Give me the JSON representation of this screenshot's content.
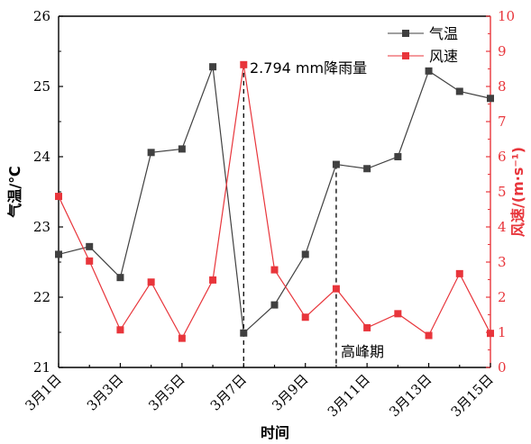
{
  "chart_data": {
    "type": "line",
    "xlabel": "时间",
    "categories": [
      "3月1日",
      "3月2日",
      "3月3日",
      "3月4日",
      "3月5日",
      "3月6日",
      "3月7日",
      "3月8日",
      "3月9日",
      "3月10日",
      "3月11日",
      "3月12日",
      "3月13日",
      "3月14日",
      "3月15日"
    ],
    "x_tick_labels": [
      "3月1日",
      "3月3日",
      "3月5日",
      "3月7日",
      "3月9日",
      "3月11日",
      "3月13日",
      "3月15日"
    ],
    "y_left": {
      "label": "气温/℃",
      "lim": [
        21,
        26
      ],
      "ticks": [
        "21",
        "22",
        "23",
        "24",
        "25",
        "26"
      ]
    },
    "y_right": {
      "label": "风速/(m·s⁻¹)",
      "lim": [
        0,
        10
      ],
      "ticks": [
        "0",
        "1",
        "2",
        "3",
        "4",
        "5",
        "6",
        "7",
        "8",
        "9",
        "10"
      ]
    },
    "series": [
      {
        "name": "气温",
        "axis": "left",
        "color": "#404040",
        "marker": "square",
        "values": [
          22.61,
          22.72,
          22.28,
          24.06,
          24.11,
          25.28,
          21.49,
          21.89,
          22.61,
          23.89,
          23.83,
          24.0,
          25.22,
          24.93,
          24.83
        ]
      },
      {
        "name": "风速",
        "axis": "right",
        "color": "#e8353b",
        "marker": "square",
        "values": [
          4.87,
          3.03,
          1.07,
          2.43,
          0.83,
          2.49,
          8.62,
          2.78,
          1.43,
          2.24,
          1.13,
          1.53,
          0.91,
          2.67,
          0.97
        ]
      }
    ],
    "annotations": [
      {
        "text": "2.794 mm降雨量",
        "x_index": 6
      },
      {
        "text": "高峰期",
        "x_index": 9
      }
    ],
    "legend_position": "top-right",
    "grid": false
  }
}
